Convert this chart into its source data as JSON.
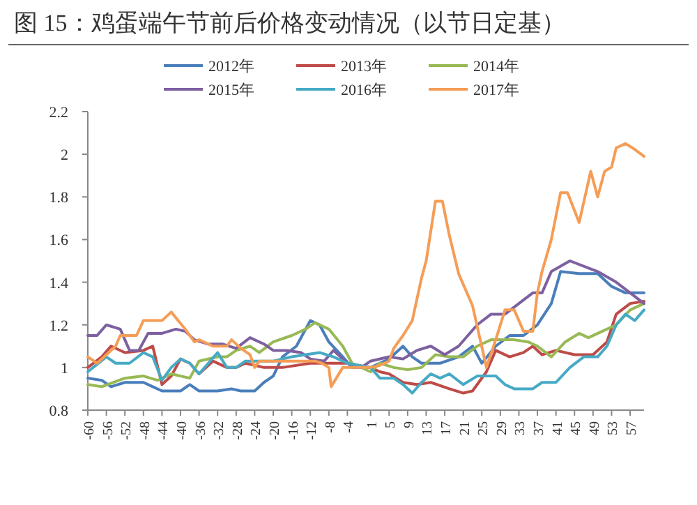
{
  "chart_data": {
    "type": "line",
    "title": "图 15：鸡蛋端午节前后价格变动情况（以节日定基）",
    "legend": "top",
    "xlim": [
      -60,
      60
    ],
    "ylim": [
      0.8,
      2.2
    ],
    "xticks": [
      -60,
      -56,
      -52,
      -48,
      -44,
      -40,
      -36,
      -32,
      -28,
      -24,
      -20,
      -16,
      -12,
      -8,
      -4,
      1,
      5,
      9,
      13,
      17,
      21,
      25,
      29,
      33,
      37,
      41,
      45,
      49,
      53,
      57
    ],
    "yticks": [
      0.8,
      1,
      1.2,
      1.4,
      1.6,
      1.8,
      2,
      2.2
    ],
    "series": [
      {
        "name": "2012年",
        "color": "#4a7ebb",
        "x": [
          -60,
          -57,
          -55,
          -52,
          -48,
          -46,
          -44,
          -40,
          -38,
          -36,
          -32,
          -29,
          -27,
          -24,
          -22,
          -20,
          -18,
          -15,
          -12,
          -10,
          -8,
          -5,
          -3,
          1,
          3,
          5,
          8,
          10,
          12,
          16,
          20,
          23,
          25,
          28,
          31,
          34,
          37,
          40,
          42,
          46,
          50,
          53,
          56,
          60
        ],
        "values": [
          0.95,
          0.94,
          0.91,
          0.93,
          0.93,
          0.91,
          0.89,
          0.89,
          0.92,
          0.89,
          0.89,
          0.9,
          0.89,
          0.89,
          0.93,
          0.96,
          1.05,
          1.1,
          1.22,
          1.2,
          1.12,
          1.05,
          1,
          1,
          1.02,
          1.04,
          1.1,
          1.05,
          1.02,
          1.02,
          1.05,
          1.1,
          1.02,
          1.1,
          1.15,
          1.15,
          1.2,
          1.3,
          1.45,
          1.44,
          1.44,
          1.38,
          1.35,
          1.35
        ]
      },
      {
        "name": "2013年",
        "color": "#be4b48",
        "x": [
          -60,
          -57,
          -55,
          -52,
          -48,
          -46,
          -44,
          -42,
          -40,
          -38,
          -36,
          -33,
          -30,
          -28,
          -26,
          -22,
          -18,
          -12,
          -4,
          1,
          3,
          5,
          8,
          11,
          14,
          18,
          21,
          23,
          26,
          28,
          31,
          34,
          36,
          38,
          41,
          45,
          49,
          52,
          54,
          57,
          60
        ],
        "values": [
          1,
          1.05,
          1.1,
          1.07,
          1.08,
          1.1,
          0.92,
          0.96,
          1.04,
          1.02,
          0.97,
          1.03,
          1,
          1,
          1.02,
          1,
          1,
          1.02,
          1.02,
          1,
          0.98,
          0.97,
          0.93,
          0.92,
          0.93,
          0.9,
          0.88,
          0.89,
          0.98,
          1.08,
          1.05,
          1.07,
          1.1,
          1.06,
          1.08,
          1.06,
          1.06,
          1.12,
          1.25,
          1.3,
          1.31
        ]
      },
      {
        "name": "2014年",
        "color": "#98b954",
        "x": [
          -60,
          -57,
          -52,
          -48,
          -45,
          -42,
          -38,
          -36,
          -32,
          -30,
          -28,
          -25,
          -23,
          -20,
          -16,
          -13,
          -11,
          -8,
          -5,
          -3,
          1,
          3,
          6,
          9,
          12,
          15,
          18,
          21,
          24,
          27,
          32,
          35,
          37,
          40,
          43,
          46,
          48,
          51,
          54,
          57,
          60
        ],
        "values": [
          0.92,
          0.91,
          0.95,
          0.96,
          0.94,
          0.97,
          0.95,
          1.03,
          1.05,
          1.05,
          1.08,
          1.1,
          1.07,
          1.12,
          1.15,
          1.18,
          1.21,
          1.18,
          1.1,
          1.02,
          0.98,
          1.02,
          1,
          0.99,
          1,
          1.06,
          1.05,
          1.05,
          1.1,
          1.13,
          1.13,
          1.12,
          1.1,
          1.05,
          1.12,
          1.16,
          1.14,
          1.17,
          1.2,
          1.27,
          1.3
        ]
      },
      {
        "name": "2015年",
        "color": "#7d60a0",
        "x": [
          -60,
          -58,
          -56,
          -53,
          -51,
          -49,
          -47,
          -44,
          -41,
          -39,
          -37,
          -34,
          -31,
          -28,
          -25,
          -22,
          -20,
          -17,
          -14,
          -12,
          -9,
          -7,
          -4,
          -1,
          1,
          5,
          8,
          11,
          14,
          17,
          20,
          24,
          27,
          30,
          33,
          36,
          38,
          40,
          44,
          50,
          54,
          57,
          60
        ],
        "values": [
          1.15,
          1.15,
          1.2,
          1.18,
          1.08,
          1.08,
          1.16,
          1.16,
          1.18,
          1.17,
          1.13,
          1.11,
          1.11,
          1.09,
          1.14,
          1.11,
          1.08,
          1.08,
          1.07,
          1.04,
          1.03,
          1.08,
          1.02,
          1,
          1.03,
          1.05,
          1.04,
          1.08,
          1.1,
          1.06,
          1.1,
          1.2,
          1.25,
          1.25,
          1.3,
          1.35,
          1.35,
          1.45,
          1.5,
          1.45,
          1.4,
          1.35,
          1.3
        ]
      },
      {
        "name": "2016年",
        "color": "#46aac5",
        "x": [
          -60,
          -56,
          -54,
          -51,
          -48,
          -46,
          -44,
          -42,
          -40,
          -38,
          -36,
          -32,
          -30,
          -28,
          -26,
          -20,
          -16,
          -10,
          -7,
          -4,
          1,
          3,
          6,
          8,
          10,
          12,
          14,
          16,
          18,
          21,
          24,
          28,
          30,
          32,
          36,
          38,
          41,
          44,
          47,
          50,
          52,
          54,
          56,
          58,
          60
        ],
        "values": [
          0.98,
          1.05,
          1.02,
          1.02,
          1.07,
          1.05,
          0.94,
          1,
          1.04,
          1.02,
          0.97,
          1.07,
          1,
          1,
          1.03,
          1.03,
          1.05,
          1.07,
          1.05,
          1.02,
          1,
          0.95,
          0.95,
          0.92,
          0.88,
          0.93,
          0.97,
          0.95,
          0.97,
          0.92,
          0.96,
          0.96,
          0.92,
          0.9,
          0.9,
          0.93,
          0.93,
          1,
          1.05,
          1.05,
          1.1,
          1.2,
          1.25,
          1.22,
          1.27
        ]
      },
      {
        "name": "2017年",
        "color": "#f59d56",
        "x": [
          -60,
          -58,
          -54,
          -53,
          -49.5,
          -48,
          -44,
          -42,
          -39,
          -37,
          -36,
          -33,
          -30,
          -29,
          -27,
          -25,
          -24,
          -23,
          -11,
          -9.5,
          -8,
          -7.5,
          -5,
          1,
          3,
          5,
          6,
          8,
          10,
          12,
          13,
          15,
          16.5,
          18,
          20,
          23,
          26,
          28,
          30,
          32,
          34,
          36,
          37,
          38,
          40,
          42,
          43.5,
          46,
          48.5,
          50,
          51.5,
          53,
          54,
          56,
          57.5,
          60
        ],
        "values": [
          1.05,
          1.02,
          1.1,
          1.15,
          1.15,
          1.22,
          1.22,
          1.26,
          1.18,
          1.12,
          1.13,
          1.1,
          1.1,
          1.13,
          1.09,
          1.06,
          1,
          1.03,
          1.03,
          1.02,
          1,
          0.91,
          1,
          1,
          1.01,
          1.03,
          1.09,
          1.15,
          1.22,
          1.42,
          1.5,
          1.78,
          1.78,
          1.62,
          1.44,
          1.29,
          1,
          1.13,
          1.27,
          1.27,
          1.17,
          1.17,
          1.35,
          1.45,
          1.6,
          1.82,
          1.82,
          1.68,
          1.92,
          1.8,
          1.92,
          1.94,
          2.03,
          2.05,
          2.03,
          1.99
        ]
      }
    ]
  }
}
